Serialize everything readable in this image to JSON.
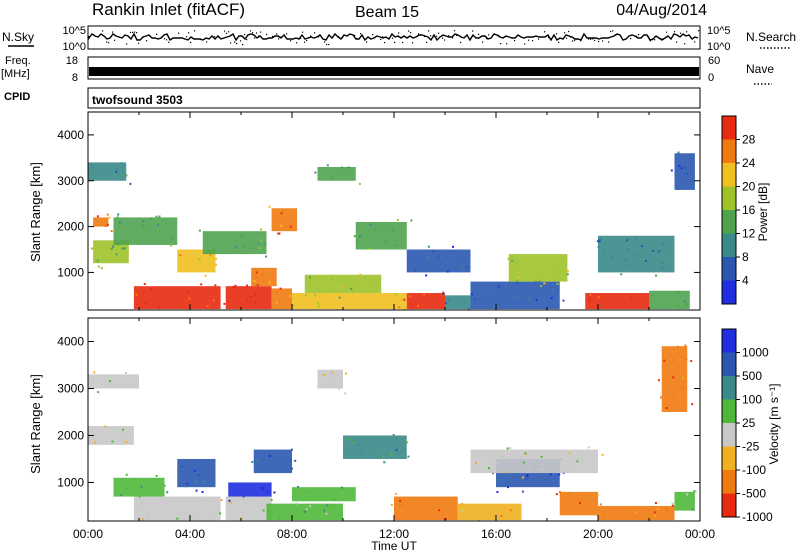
{
  "header": {
    "radar": "Rankin Inlet (fitACF)",
    "beam": "Beam 15",
    "date": "04/Aug/2014"
  },
  "strip_labels": {
    "nsky": "N.Sky",
    "nsky_ticks": [
      "10^5",
      "10^0"
    ],
    "nsearch": "N.Search",
    "nsearch_ticks": [
      "10^5",
      "10^0"
    ],
    "freq_line1": "Freq.",
    "freq_line2": "[MHz]",
    "freq_ticks": [
      "18",
      "8"
    ],
    "nave": "Nave",
    "nave_ticks": [
      "60",
      "0"
    ],
    "cpid": "CPID",
    "cpid_text": "twofsound 3503"
  },
  "chart_data": [
    {
      "type": "heatmap",
      "panel": "power",
      "ylabel": "Slant Range [km]",
      "xlabel": "",
      "ylim": [
        180,
        4500
      ],
      "yticks": [
        "1000",
        "2000",
        "3000",
        "4000"
      ],
      "xlim_hours": [
        0,
        24
      ],
      "colorbar": {
        "label": "Power [dB]",
        "ticks": [
          "4",
          "8",
          "12",
          "16",
          "20",
          "24",
          "28"
        ],
        "colors": [
          "#1f2fe0",
          "#2a58b0",
          "#3a8a8a",
          "#4fa34f",
          "#9fc22a",
          "#f0c020",
          "#f07a10",
          "#e82a10"
        ]
      },
      "blocks": [
        {
          "t": [
            1.8,
            5.2
          ],
          "r": [
            200,
            700
          ],
          "c": 7
        },
        {
          "t": [
            5.4,
            7.2
          ],
          "r": [
            200,
            700
          ],
          "c": 7
        },
        {
          "t": [
            6.4,
            7.4
          ],
          "r": [
            700,
            1100
          ],
          "c": 6
        },
        {
          "t": [
            7.2,
            8.0
          ],
          "r": [
            200,
            650
          ],
          "c": 6
        },
        {
          "t": [
            8.0,
            12.5
          ],
          "r": [
            200,
            550
          ],
          "c": 5
        },
        {
          "t": [
            8.5,
            11.5
          ],
          "r": [
            550,
            950
          ],
          "c": 4
        },
        {
          "t": [
            12.5,
            14.0
          ],
          "r": [
            200,
            550
          ],
          "c": 7
        },
        {
          "t": [
            14.0,
            15.0
          ],
          "r": [
            200,
            500
          ],
          "c": 2
        },
        {
          "t": [
            15.0,
            18.5
          ],
          "r": [
            200,
            800
          ],
          "c": 1
        },
        {
          "t": [
            16.5,
            18.8
          ],
          "r": [
            800,
            1400
          ],
          "c": 4
        },
        {
          "t": [
            19.5,
            22.0
          ],
          "r": [
            200,
            550
          ],
          "c": 7
        },
        {
          "t": [
            22.0,
            23.6
          ],
          "r": [
            200,
            600
          ],
          "c": 3
        },
        {
          "t": [
            0.2,
            1.6
          ],
          "r": [
            1200,
            1700
          ],
          "c": 4
        },
        {
          "t": [
            1.0,
            3.5
          ],
          "r": [
            1600,
            2200
          ],
          "c": 3
        },
        {
          "t": [
            0.2,
            0.8
          ],
          "r": [
            2000,
            2200
          ],
          "c": 6
        },
        {
          "t": [
            0.0,
            1.5
          ],
          "r": [
            3000,
            3400
          ],
          "c": 2
        },
        {
          "t": [
            3.5,
            5.0
          ],
          "r": [
            1000,
            1500
          ],
          "c": 5
        },
        {
          "t": [
            9.0,
            10.5
          ],
          "r": [
            3000,
            3300
          ],
          "c": 3
        },
        {
          "t": [
            7.2,
            8.2
          ],
          "r": [
            1900,
            2400
          ],
          "c": 6
        },
        {
          "t": [
            10.5,
            12.5
          ],
          "r": [
            1500,
            2100
          ],
          "c": 3
        },
        {
          "t": [
            12.5,
            15.0
          ],
          "r": [
            1000,
            1500
          ],
          "c": 1
        },
        {
          "t": [
            20.0,
            23.0
          ],
          "r": [
            1000,
            1800
          ],
          "c": 2
        },
        {
          "t": [
            23.0,
            23.8
          ],
          "r": [
            2800,
            3600
          ],
          "c": 1
        },
        {
          "t": [
            4.5,
            7.0
          ],
          "r": [
            1400,
            1900
          ],
          "c": 3
        }
      ]
    },
    {
      "type": "heatmap",
      "panel": "velocity",
      "ylabel": "Slant Range [km]",
      "xlabel": "Time UT",
      "ylim": [
        180,
        4500
      ],
      "yticks": [
        "1000",
        "2000",
        "3000",
        "4000"
      ],
      "xticks": [
        "00:00",
        "04:00",
        "08:00",
        "12:00",
        "16:00",
        "20:00",
        "00:00"
      ],
      "xlim_hours": [
        0,
        24
      ],
      "colorbar": {
        "label": "Velocity [m s⁻¹]",
        "ticks": [
          "1000",
          "500",
          "100",
          "25",
          "-25",
          "-100",
          "-500",
          "-1000"
        ],
        "colors": [
          "#1f2fe0",
          "#2a58b0",
          "#3a8a8a",
          "#4fb83a",
          "#c8c8c8",
          "#f0b020",
          "#f07a10",
          "#e82a10"
        ]
      },
      "blocks": [
        {
          "t": [
            1.8,
            5.2
          ],
          "r": [
            200,
            700
          ],
          "c": 4
        },
        {
          "t": [
            5.4,
            7.2
          ],
          "r": [
            200,
            700
          ],
          "c": 4
        },
        {
          "t": [
            0.0,
            1.8
          ],
          "r": [
            1800,
            2200
          ],
          "c": 4
        },
        {
          "t": [
            0.0,
            2.0
          ],
          "r": [
            3000,
            3300
          ],
          "c": 4
        },
        {
          "t": [
            5.5,
            7.2
          ],
          "r": [
            700,
            1000
          ],
          "c": 0
        },
        {
          "t": [
            7.0,
            10.0
          ],
          "r": [
            200,
            550
          ],
          "c": 3
        },
        {
          "t": [
            3.5,
            5.0
          ],
          "r": [
            900,
            1500
          ],
          "c": 1
        },
        {
          "t": [
            6.5,
            8.0
          ],
          "r": [
            1200,
            1700
          ],
          "c": 1
        },
        {
          "t": [
            8.0,
            10.5
          ],
          "r": [
            600,
            900
          ],
          "c": 3
        },
        {
          "t": [
            12.0,
            14.5
          ],
          "r": [
            200,
            700
          ],
          "c": 6
        },
        {
          "t": [
            14.5,
            17.0
          ],
          "r": [
            200,
            550
          ],
          "c": 5
        },
        {
          "t": [
            16.0,
            18.5
          ],
          "r": [
            900,
            1500
          ],
          "c": 1
        },
        {
          "t": [
            15.0,
            20.0
          ],
          "r": [
            1200,
            1700
          ],
          "c": 4
        },
        {
          "t": [
            18.5,
            20.0
          ],
          "r": [
            300,
            800
          ],
          "c": 6
        },
        {
          "t": [
            20.0,
            23.0
          ],
          "r": [
            200,
            500
          ],
          "c": 6
        },
        {
          "t": [
            23.0,
            23.8
          ],
          "r": [
            400,
            800
          ],
          "c": 3
        },
        {
          "t": [
            22.5,
            23.5
          ],
          "r": [
            2500,
            3900
          ],
          "c": 6
        },
        {
          "t": [
            9.0,
            10.0
          ],
          "r": [
            3000,
            3400
          ],
          "c": 4
        },
        {
          "t": [
            1.0,
            3.0
          ],
          "r": [
            700,
            1100
          ],
          "c": 3
        },
        {
          "t": [
            10.0,
            12.5
          ],
          "r": [
            1500,
            2000
          ],
          "c": 2
        }
      ]
    }
  ]
}
